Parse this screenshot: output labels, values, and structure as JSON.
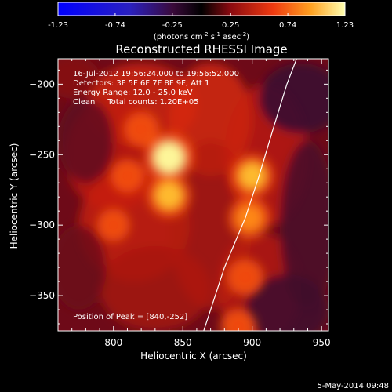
{
  "colorbar": {
    "tick_labels": [
      "-1.23",
      "-0.74",
      "-0.25",
      "0.25",
      "0.74",
      "1.23"
    ],
    "tick_values": [
      -1.23,
      -0.74,
      -0.25,
      0.25,
      0.74,
      1.23
    ],
    "range": [
      -1.23,
      1.23
    ],
    "unit_prefix": "(photons cm",
    "unit_exp1": "-2",
    "unit_mid": " s",
    "unit_exp2": "-1",
    "unit_mid2": " asec",
    "unit_exp3": "-2",
    "unit_suffix": ")"
  },
  "chart_data": {
    "type": "heatmap",
    "title": "Reconstructed RHESSI Image",
    "xlabel": "Heliocentric X (arcsec)",
    "ylabel": "Heliocentric Y (arcsec)",
    "xlim": [
      760,
      955
    ],
    "ylim": [
      -375,
      -182
    ],
    "x_ticks": [
      800,
      850,
      900,
      950
    ],
    "y_ticks": [
      -200,
      -250,
      -300,
      -350
    ],
    "x_tick_labels": [
      "800",
      "850",
      "900",
      "950"
    ],
    "y_tick_labels": [
      "−200",
      "−250",
      "−300",
      "−350"
    ],
    "annotations": [
      "16-Jul-2012 19:56:24.000 to 19:56:52.000",
      "Detectors: 3F 5F 6F 7F 8F 9F, Att 1",
      "Energy Range: 12.0 - 25.0 keV",
      "Clean     Total counts: 1.20E+05",
      "Position of Peak = [840,-252]"
    ],
    "peak": [
      840,
      -252
    ],
    "sources": [
      {
        "x": 840,
        "y": -252,
        "intensity": 1.23
      },
      {
        "x": 840,
        "y": -279,
        "intensity": 0.95
      },
      {
        "x": 900,
        "y": -265,
        "intensity": 0.9
      },
      {
        "x": 898,
        "y": -295,
        "intensity": 0.85
      },
      {
        "x": 895,
        "y": -337,
        "intensity": 0.6
      },
      {
        "x": 890,
        "y": -372,
        "intensity": 0.55
      },
      {
        "x": 820,
        "y": -232,
        "intensity": 0.5
      },
      {
        "x": 810,
        "y": -265,
        "intensity": 0.45
      },
      {
        "x": 800,
        "y": -300,
        "intensity": 0.4
      }
    ],
    "limb": [
      [
        865,
        -375
      ],
      [
        880,
        -330
      ],
      [
        895,
        -295
      ],
      [
        905,
        -265
      ],
      [
        915,
        -232
      ],
      [
        925,
        -200
      ],
      [
        932,
        -182
      ]
    ]
  },
  "timestamp": "5-May-2014 09:48"
}
